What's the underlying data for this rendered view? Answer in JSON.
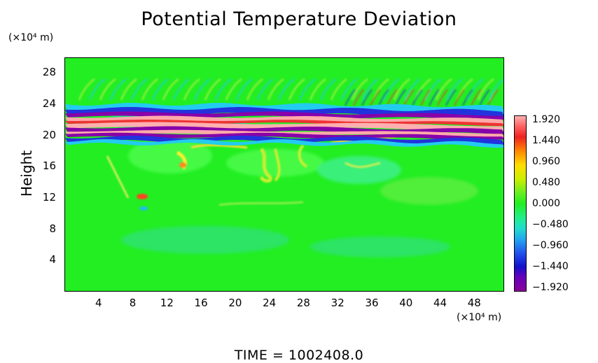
{
  "chart_data": {
    "type": "heatmap",
    "title": "Potential Temperature Deviation",
    "ylabel": "Height",
    "xlabel": "",
    "x_units": "(×10⁴ m)",
    "y_units": "(×10⁴ m)",
    "x_ticks": [
      "4",
      "8",
      "12",
      "16",
      "20",
      "24",
      "28",
      "32",
      "36",
      "40",
      "44",
      "48"
    ],
    "y_ticks": [
      "4",
      "8",
      "12",
      "16",
      "20",
      "24",
      "28"
    ],
    "xlim": [
      0,
      51.5
    ],
    "ylim": [
      0,
      30
    ],
    "colorbar": {
      "labels": [
        "1.920",
        "1.440",
        "0.960",
        "0.480",
        "0.000",
        "−0.480",
        "−0.960",
        "−1.440",
        "−1.920"
      ],
      "range": [
        -1.92,
        1.92
      ]
    },
    "footer": "TIME  =  1002408.0"
  },
  "colors": {
    "background_field": "#22ee22",
    "positive_high": "#ffb0b0",
    "negative_low": "#8800aa"
  }
}
